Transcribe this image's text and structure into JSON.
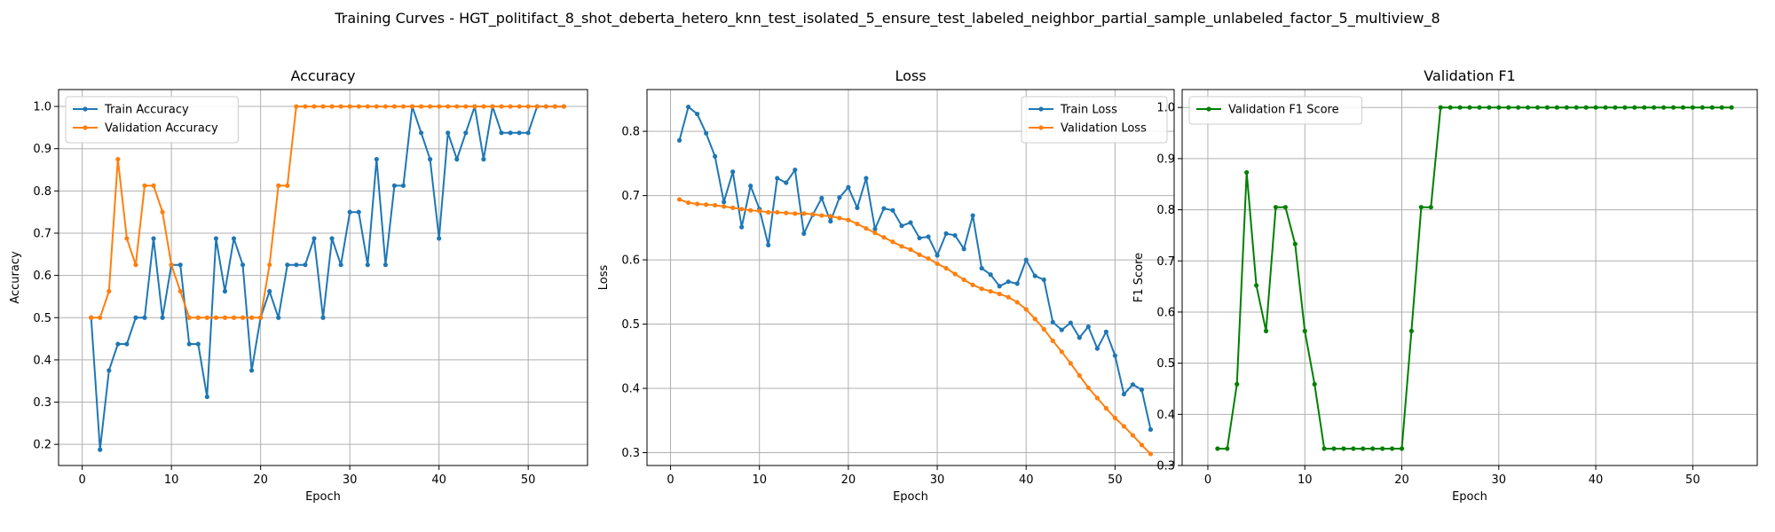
{
  "suptitle": "Training Curves - HGT_politifact_8_shot_deberta_hetero_knn_test_isolated_5_ensure_test_labeled_neighbor_partial_sample_unlabeled_factor_5_multiview_8",
  "colors": {
    "train": "#1f77b4",
    "val": "#ff7f0e",
    "f1": "#008000",
    "grid": "#b0b0b0"
  },
  "chart_data": [
    {
      "type": "line",
      "title": "Accuracy",
      "xlabel": "Epoch",
      "ylabel": "Accuracy",
      "xlim": [
        -2.65,
        56.65
      ],
      "ylim": [
        0.15,
        1.04
      ],
      "xticks": [
        0,
        10,
        20,
        30,
        40,
        50
      ],
      "yticks": [
        0.2,
        0.3,
        0.4,
        0.5,
        0.6,
        0.7,
        0.8,
        0.9,
        1.0
      ],
      "ytick_labels": [
        "0.2",
        "0.3",
        "0.4",
        "0.5",
        "0.6",
        "0.7",
        "0.8",
        "0.9",
        "1.0"
      ],
      "grid": true,
      "legend_loc": "upper-left",
      "x": [
        1,
        2,
        3,
        4,
        5,
        6,
        7,
        8,
        9,
        10,
        11,
        12,
        13,
        14,
        15,
        16,
        17,
        18,
        19,
        20,
        21,
        22,
        23,
        24,
        25,
        26,
        27,
        28,
        29,
        30,
        31,
        32,
        33,
        34,
        35,
        36,
        37,
        38,
        39,
        40,
        41,
        42,
        43,
        44,
        45,
        46,
        47,
        48,
        49,
        50,
        51,
        52,
        53,
        54
      ],
      "series": [
        {
          "name": "Train Accuracy",
          "color_key": "train",
          "values": [
            0.5,
            0.1875,
            0.375,
            0.4375,
            0.4375,
            0.5,
            0.5,
            0.6875,
            0.5,
            0.625,
            0.625,
            0.4375,
            0.4375,
            0.3125,
            0.6875,
            0.5625,
            0.6875,
            0.625,
            0.375,
            0.5,
            0.5625,
            0.5,
            0.625,
            0.625,
            0.625,
            0.6875,
            0.5,
            0.6875,
            0.625,
            0.75,
            0.75,
            0.625,
            0.875,
            0.625,
            0.8125,
            0.8125,
            1.0,
            0.9375,
            0.875,
            0.6875,
            0.9375,
            0.875,
            0.9375,
            1.0,
            0.875,
            1.0,
            0.9375,
            0.9375,
            0.9375,
            0.9375,
            1.0,
            1.0,
            1.0,
            1.0
          ]
        },
        {
          "name": "Validation Accuracy",
          "color_key": "val",
          "values": [
            0.5,
            0.5,
            0.5625,
            0.875,
            0.6875,
            0.625,
            0.8125,
            0.8125,
            0.75,
            0.625,
            0.5625,
            0.5,
            0.5,
            0.5,
            0.5,
            0.5,
            0.5,
            0.5,
            0.5,
            0.5,
            0.625,
            0.8125,
            0.8125,
            1.0,
            1.0,
            1.0,
            1.0,
            1.0,
            1.0,
            1.0,
            1.0,
            1.0,
            1.0,
            1.0,
            1.0,
            1.0,
            1.0,
            1.0,
            1.0,
            1.0,
            1.0,
            1.0,
            1.0,
            1.0,
            1.0,
            1.0,
            1.0,
            1.0,
            1.0,
            1.0,
            1.0,
            1.0,
            1.0,
            1.0
          ]
        }
      ]
    },
    {
      "type": "line",
      "title": "Loss",
      "xlabel": "Epoch",
      "ylabel": "Loss",
      "xlim": [
        -2.65,
        56.65
      ],
      "ylim": [
        0.28,
        0.865
      ],
      "xticks": [
        0,
        10,
        20,
        30,
        40,
        50
      ],
      "yticks": [
        0.3,
        0.4,
        0.5,
        0.6,
        0.7,
        0.8
      ],
      "ytick_labels": [
        "0.3",
        "0.4",
        "0.5",
        "0.6",
        "0.7",
        "0.8"
      ],
      "grid": true,
      "legend_loc": "upper-right",
      "x": [
        1,
        2,
        3,
        4,
        5,
        6,
        7,
        8,
        9,
        10,
        11,
        12,
        13,
        14,
        15,
        16,
        17,
        18,
        19,
        20,
        21,
        22,
        23,
        24,
        25,
        26,
        27,
        28,
        29,
        30,
        31,
        32,
        33,
        34,
        35,
        36,
        37,
        38,
        39,
        40,
        41,
        42,
        43,
        44,
        45,
        46,
        47,
        48,
        49,
        50,
        51,
        52,
        53,
        54
      ],
      "series": [
        {
          "name": "Train Loss",
          "color_key": "train",
          "values": [
            0.786,
            0.838,
            0.827,
            0.797,
            0.761,
            0.69,
            0.737,
            0.651,
            0.715,
            0.679,
            0.623,
            0.727,
            0.72,
            0.74,
            0.641,
            0.67,
            0.696,
            0.66,
            0.697,
            0.713,
            0.681,
            0.727,
            0.648,
            0.68,
            0.677,
            0.653,
            0.658,
            0.634,
            0.636,
            0.607,
            0.641,
            0.638,
            0.617,
            0.669,
            0.587,
            0.577,
            0.559,
            0.566,
            0.563,
            0.6,
            0.575,
            0.569,
            0.503,
            0.491,
            0.502,
            0.479,
            0.496,
            0.462,
            0.488,
            0.451,
            0.391,
            0.406,
            0.398,
            0.336
          ]
        },
        {
          "name": "Validation Loss",
          "color_key": "val",
          "values": [
            0.694,
            0.689,
            0.687,
            0.686,
            0.685,
            0.683,
            0.681,
            0.679,
            0.677,
            0.676,
            0.674,
            0.674,
            0.673,
            0.672,
            0.672,
            0.671,
            0.669,
            0.668,
            0.665,
            0.662,
            0.656,
            0.649,
            0.642,
            0.635,
            0.628,
            0.621,
            0.616,
            0.608,
            0.602,
            0.594,
            0.587,
            0.578,
            0.569,
            0.561,
            0.555,
            0.551,
            0.547,
            0.542,
            0.534,
            0.523,
            0.508,
            0.492,
            0.474,
            0.457,
            0.439,
            0.42,
            0.401,
            0.385,
            0.369,
            0.354,
            0.341,
            0.327,
            0.312,
            0.298
          ]
        }
      ]
    },
    {
      "type": "line",
      "title": "Validation F1",
      "xlabel": "Epoch",
      "ylabel": "F1 Score",
      "xlim": [
        -2.65,
        56.65
      ],
      "ylim": [
        0.3,
        1.035
      ],
      "xticks": [
        0,
        10,
        20,
        30,
        40,
        50
      ],
      "yticks": [
        0.3,
        0.4,
        0.5,
        0.6,
        0.7,
        0.8,
        0.9,
        1.0
      ],
      "ytick_labels": [
        "0.3",
        "0.4",
        "0.5",
        "0.6",
        "0.7",
        "0.8",
        "0.9",
        "1.0"
      ],
      "grid": true,
      "legend_loc": "upper-left",
      "x": [
        1,
        2,
        3,
        4,
        5,
        6,
        7,
        8,
        9,
        10,
        11,
        12,
        13,
        14,
        15,
        16,
        17,
        18,
        19,
        20,
        21,
        22,
        23,
        24,
        25,
        26,
        27,
        28,
        29,
        30,
        31,
        32,
        33,
        34,
        35,
        36,
        37,
        38,
        39,
        40,
        41,
        42,
        43,
        44,
        45,
        46,
        47,
        48,
        49,
        50,
        51,
        52,
        53,
        54
      ],
      "series": [
        {
          "name": "Validation F1 Score",
          "color_key": "f1",
          "values": [
            0.333,
            0.333,
            0.459,
            0.873,
            0.652,
            0.563,
            0.805,
            0.805,
            0.733,
            0.563,
            0.459,
            0.333,
            0.333,
            0.333,
            0.333,
            0.333,
            0.333,
            0.333,
            0.333,
            0.333,
            0.563,
            0.805,
            0.805,
            1.0,
            1.0,
            1.0,
            1.0,
            1.0,
            1.0,
            1.0,
            1.0,
            1.0,
            1.0,
            1.0,
            1.0,
            1.0,
            1.0,
            1.0,
            1.0,
            1.0,
            1.0,
            1.0,
            1.0,
            1.0,
            1.0,
            1.0,
            1.0,
            1.0,
            1.0,
            1.0,
            1.0,
            1.0,
            1.0,
            1.0
          ]
        }
      ]
    }
  ]
}
